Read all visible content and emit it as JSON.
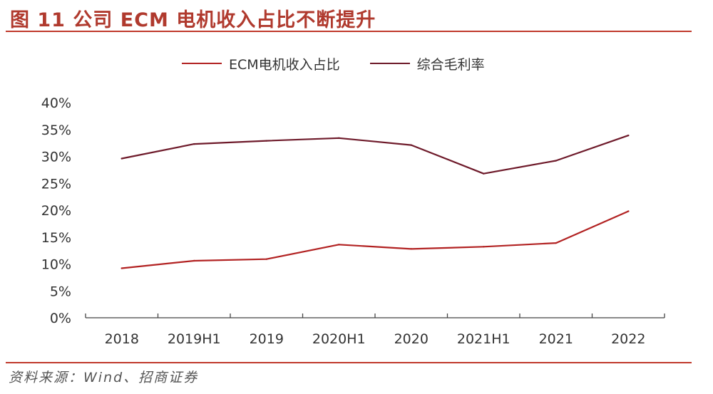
{
  "title": "图 11 公司 ECM 电机收入占比不断提升",
  "source": "资料来源：Wind、招商证券",
  "chart_data": {
    "type": "line",
    "categories": [
      "2018",
      "2019H1",
      "2019",
      "2020H1",
      "2020",
      "2021H1",
      "2021",
      "2022"
    ],
    "series": [
      {
        "name": "ECM电机收入占比",
        "color": "#b22222",
        "values": [
          9.2,
          10.6,
          10.9,
          13.6,
          12.8,
          13.2,
          13.9,
          19.8
        ]
      },
      {
        "name": "综合毛利率",
        "color": "#6e1a2a",
        "values": [
          29.6,
          32.3,
          32.9,
          33.4,
          32.1,
          26.8,
          29.2,
          33.9
        ]
      }
    ],
    "ylim": [
      0,
      40
    ],
    "yticks": [
      "0%",
      "5%",
      "10%",
      "15%",
      "20%",
      "25%",
      "30%",
      "35%",
      "40%"
    ],
    "ytick_values": [
      0,
      5,
      10,
      15,
      20,
      25,
      30,
      35,
      40
    ],
    "grid": false,
    "legend": "top"
  }
}
